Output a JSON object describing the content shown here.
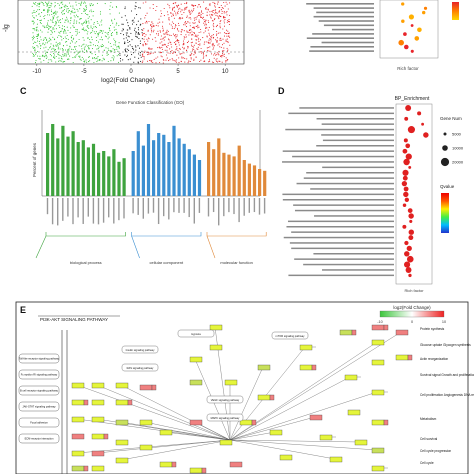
{
  "panels": {
    "A": {
      "label": "",
      "x_axis_label": "log2(Fold Change)",
      "x_ticks": [
        "-10",
        "-5",
        "0",
        "5",
        "10"
      ],
      "y_axis_label": "-lg",
      "colors": {
        "down": "#39c439",
        "up": "#e5252a",
        "ns": "#111111"
      }
    },
    "B": {
      "label": "",
      "x_axis_label": "Rich factor",
      "legend_colors": [
        "#e8242a",
        "#ff7f00",
        "#ffd700"
      ]
    },
    "C": {
      "label": "C",
      "title": "Gene Function Classification (GO)",
      "y_axis_label": "Percent of genes",
      "groups": [
        {
          "name": "biological process",
          "color": "#3ea33e",
          "bars": 16
        },
        {
          "name": "cellular component",
          "color": "#3b8fd1",
          "bars": 14
        },
        {
          "name": "molecular function",
          "color": "#e0893a",
          "bars": 12
        }
      ]
    },
    "D": {
      "label": "D",
      "title": "BP_Enrichment",
      "x_axis_label": "Rich factor",
      "size_legend_title": "Gene Num",
      "size_legend_values": [
        "5000",
        "10000",
        "20000"
      ],
      "color_legend_title": "Qvalue",
      "color_legend_stops": [
        "#2233cc",
        "#00bbff",
        "#44ee44",
        "#ffee00",
        "#ff5500",
        "#ee0000"
      ]
    },
    "E": {
      "label": "E",
      "title": "PI3K-AKT SIGNALING PATHWAY",
      "scale_title": "log2(Fold Change)",
      "scale_ticks": [
        "-10",
        "0",
        "10"
      ],
      "scale_colors": [
        "#3cc63c",
        "#ffffff",
        "#ee2222"
      ],
      "node_colors": {
        "gene": "#e5f53a",
        "up": "#f08080",
        "mixed": "#c8e05a"
      },
      "side_labels": [
        "Toll-like receptor signaling pathway",
        "Fc epsilon RI signaling pathway",
        "B cell receptor signaling pathway",
        "JAK-STAT signaling pathway",
        "Focal adhesion",
        "ECM-receptor interaction"
      ],
      "mid_labels": [
        "Insulin signaling pathway",
        "RAS signaling pathway",
        "VEGF signaling pathway",
        "MAPK signaling pathway",
        "mTOR signaling pathway",
        "Hypoxia"
      ],
      "right_labels": [
        "Protein synthesis",
        "Glucose uptake Glycogen synthesis",
        "Actin reorganization",
        "Survival signal Growth and proliferation",
        "Cell proliferation Angiogenesis DNA repair",
        "Metabolism",
        "Cell survival",
        "Cell cycle progression",
        "Cell cycle"
      ]
    }
  }
}
